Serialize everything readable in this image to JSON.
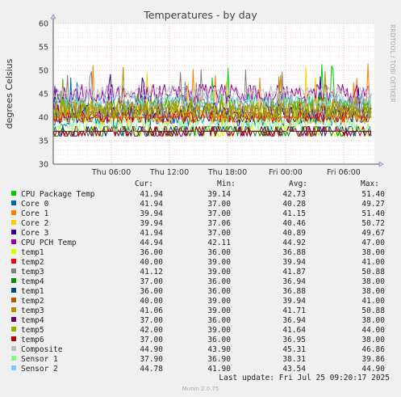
{
  "chart_data": {
    "type": "line",
    "title": "Temperatures - by day",
    "ylabel": "degrees Celsius",
    "xlabel": "",
    "ylim": [
      30,
      60
    ],
    "yticks": [
      30,
      35,
      40,
      45,
      50,
      55,
      60
    ],
    "xticks": [
      "Thu 06:00",
      "Thu 12:00",
      "Thu 18:00",
      "Fri 00:00",
      "Fri 06:00"
    ],
    "grid": true,
    "side_label": "RRDTOOL / TOBI OETIKER",
    "legend_columns": [
      "Cur:",
      "Min:",
      "Avg:",
      "Max:"
    ],
    "series": [
      {
        "name": "CPU Package Temp",
        "color": "#00cc00",
        "cur": "41.94",
        "min": "39.14",
        "avg": "42.73",
        "max": "51.40"
      },
      {
        "name": "Core 0",
        "color": "#0066b3",
        "cur": "41.94",
        "min": "37.00",
        "avg": "40.28",
        "max": "49.27"
      },
      {
        "name": "Core 1",
        "color": "#ff8000",
        "cur": "39.94",
        "min": "37.00",
        "avg": "41.15",
        "max": "51.40"
      },
      {
        "name": "Core 2",
        "color": "#ffcc00",
        "cur": "39.94",
        "min": "37.06",
        "avg": "40.46",
        "max": "50.72"
      },
      {
        "name": "Core 3",
        "color": "#330099",
        "cur": "41.94",
        "min": "37.00",
        "avg": "40.89",
        "max": "49.67"
      },
      {
        "name": "CPU PCH Temp",
        "color": "#990099",
        "cur": "44.94",
        "min": "42.11",
        "avg": "44.92",
        "max": "47.00"
      },
      {
        "name": "temp1",
        "color": "#ccff00",
        "cur": "36.00",
        "min": "36.00",
        "avg": "36.88",
        "max": "38.00"
      },
      {
        "name": "temp2",
        "color": "#ff0000",
        "cur": "40.00",
        "min": "39.00",
        "avg": "39.94",
        "max": "41.00"
      },
      {
        "name": "temp3",
        "color": "#808080",
        "cur": "41.12",
        "min": "39.00",
        "avg": "41.87",
        "max": "50.88"
      },
      {
        "name": "temp4",
        "color": "#008f00",
        "cur": "37.00",
        "min": "36.00",
        "avg": "36.94",
        "max": "38.00"
      },
      {
        "name": "temp1",
        "color": "#00487d",
        "cur": "36.00",
        "min": "36.00",
        "avg": "36.88",
        "max": "38.00"
      },
      {
        "name": "temp2",
        "color": "#b35a00",
        "cur": "40.00",
        "min": "39.00",
        "avg": "39.94",
        "max": "41.00"
      },
      {
        "name": "temp3",
        "color": "#b38f00",
        "cur": "41.06",
        "min": "39.00",
        "avg": "41.71",
        "max": "50.88"
      },
      {
        "name": "temp4",
        "color": "#6b006b",
        "cur": "37.00",
        "min": "36.00",
        "avg": "36.94",
        "max": "38.00"
      },
      {
        "name": "temp5",
        "color": "#8fb300",
        "cur": "42.00",
        "min": "39.00",
        "avg": "41.64",
        "max": "44.00"
      },
      {
        "name": "temp6",
        "color": "#b30000",
        "cur": "37.00",
        "min": "36.00",
        "avg": "36.95",
        "max": "38.00"
      },
      {
        "name": "Composite",
        "color": "#bebebe",
        "cur": "44.90",
        "min": "43.90",
        "avg": "45.31",
        "max": "46.86"
      },
      {
        "name": "Sensor 1",
        "color": "#80ff80",
        "cur": "37.90",
        "min": "36.90",
        "avg": "38.31",
        "max": "39.86"
      },
      {
        "name": "Sensor 2",
        "color": "#80c9ff",
        "cur": "44.78",
        "min": "41.90",
        "avg": "43.54",
        "max": "44.90"
      }
    ]
  },
  "footer": {
    "last_update": "Last update: Fri Jul 25 09:20:17 2025",
    "munin_version": "Munin 2.0.75"
  }
}
